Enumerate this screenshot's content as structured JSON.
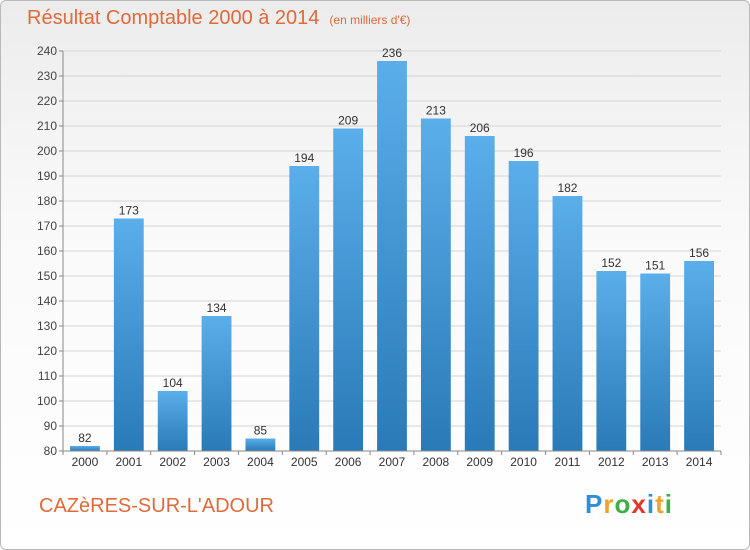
{
  "title": "Résultat Comptable 2000 à 2014",
  "unit_note": "(en milliers d'€)",
  "commune": "CAZèRES-SUR-L'ADOUR",
  "logo": {
    "text": "Proxiti",
    "letters": [
      "P",
      "r",
      "o",
      "x",
      "i",
      "t",
      "i"
    ],
    "colors": [
      "#2f8fd6",
      "#f0a22a",
      "#3fae49",
      "#e0362c",
      "#2f8fd6",
      "#f0a22a",
      "#3fae49"
    ]
  },
  "colors": {
    "bar_light": "#5aaeea",
    "bar_dark": "#2a7ab8",
    "title": "#e06a3a",
    "grid": "#d4d4d4"
  },
  "chart_data": {
    "type": "bar",
    "title": "Résultat Comptable 2000 à 2014",
    "subtitle": "(en milliers d'€)",
    "categories": [
      "2000",
      "2001",
      "2002",
      "2003",
      "2004",
      "2005",
      "2006",
      "2007",
      "2008",
      "2009",
      "2010",
      "2011",
      "2012",
      "2013",
      "2014"
    ],
    "values": [
      82,
      173,
      104,
      134,
      85,
      194,
      209,
      236,
      213,
      206,
      196,
      182,
      152,
      151,
      156
    ],
    "ylim": [
      80,
      240
    ],
    "yticks": [
      80,
      90,
      100,
      110,
      120,
      130,
      140,
      150,
      160,
      170,
      180,
      190,
      200,
      210,
      220,
      230,
      240
    ],
    "grid": true,
    "data_labels": true
  }
}
